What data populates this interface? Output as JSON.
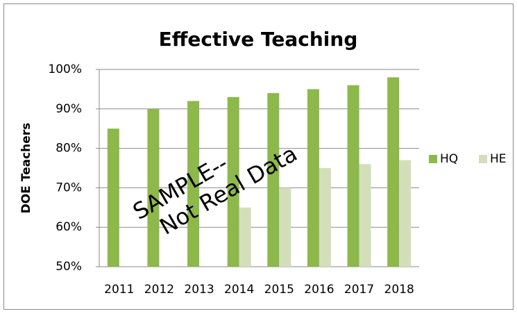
{
  "chart_data": {
    "type": "bar",
    "title": "Effective Teaching",
    "y_label": "DOE Teachers",
    "categories": [
      "2011",
      "2012",
      "2013",
      "2014",
      "2015",
      "2016",
      "2017",
      "2018"
    ],
    "series": [
      {
        "name": "HQ",
        "color": "#8db84a",
        "values": [
          85,
          90,
          92,
          93,
          94,
          95,
          96,
          98
        ]
      },
      {
        "name": "HE",
        "color": "#d3dfbb",
        "values": [
          null,
          null,
          null,
          65,
          70,
          75,
          76,
          77
        ]
      }
    ],
    "ylim": [
      50,
      100
    ],
    "yticks": [
      {
        "value": 50,
        "label": "50%"
      },
      {
        "value": 60,
        "label": "60%"
      },
      {
        "value": 70,
        "label": "70%"
      },
      {
        "value": 80,
        "label": "80%"
      },
      {
        "value": 90,
        "label": "90%"
      },
      {
        "value": 100,
        "label": "100%"
      }
    ],
    "grid": true,
    "legend": "right",
    "annotations": [
      "SAMPLE--",
      "Not Real Data"
    ]
  }
}
